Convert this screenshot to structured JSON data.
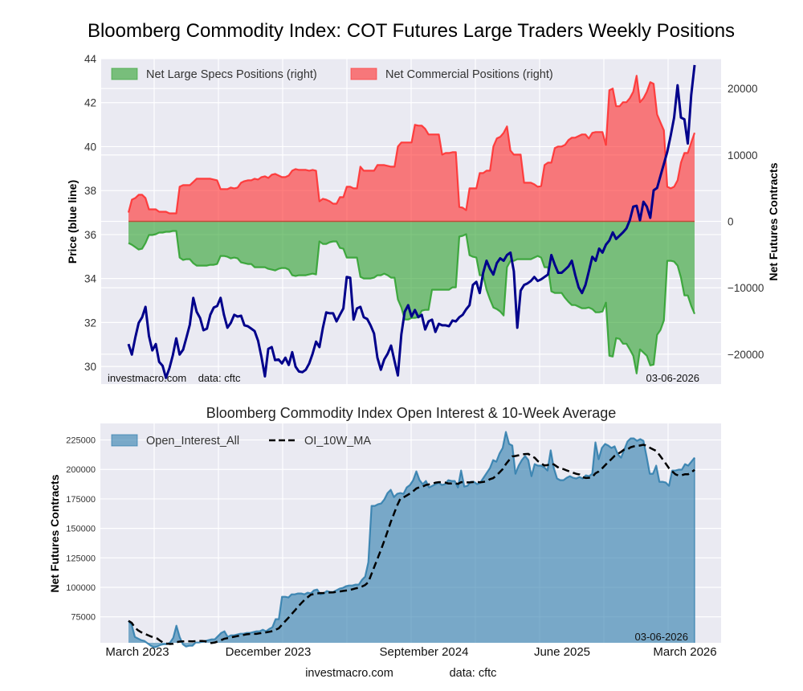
{
  "chart_data": [
    {
      "type": "area",
      "title": "Bloomberg Commodity Index: COT Futures Large Traders Weekly Positions",
      "xlabel": "",
      "ylabel": "Price (blue line)",
      "ylabel_right": "Net Futures Contracts",
      "ylim": [
        29.2,
        44
      ],
      "ylim_right": [
        -24500,
        24500
      ],
      "yticks": [
        30,
        32,
        34,
        36,
        38,
        40,
        42,
        44
      ],
      "yticks_right": [
        -20000,
        -10000,
        0,
        10000,
        20000
      ],
      "yticks_right_labels": [
        "−20000",
        "−10000",
        "0",
        "10000",
        "20000"
      ],
      "x_start": "March 2023",
      "x_end": "03-06-2026",
      "frequency": "weekly",
      "grid": true,
      "legend_position": "top-left",
      "annotation_left": "investmacro.com    data: cftc",
      "annotation_right": "03-06-2026",
      "series": [
        {
          "name": "Net Large Specs Positions (right)",
          "kind": "area",
          "axis": "right",
          "color": "#2ca02c",
          "values": [
            -3272,
            -3515,
            -3878,
            -4242,
            -4121,
            -3272,
            -2060,
            -2060,
            -1939,
            -1697,
            -1697,
            -1576,
            -1576,
            -1454,
            -1454,
            -5454,
            -5818,
            -5696,
            -5696,
            -6302,
            -6666,
            -6666,
            -6666,
            -6666,
            -6545,
            -6545,
            -6424,
            -5212,
            -5212,
            -5333,
            -5575,
            -5454,
            -5575,
            -6181,
            -6302,
            -6424,
            -6424,
            -6908,
            -6908,
            -6908,
            -6908,
            -7151,
            -7272,
            -7393,
            -7151,
            -7030,
            -7030,
            -7272,
            -8120,
            -8242,
            -8120,
            -8120,
            -8120,
            -8000,
            -7878,
            -8000,
            -3030,
            -3394,
            -3394,
            -3151,
            -3030,
            -3030,
            -4000,
            -4121,
            -5454,
            -5454,
            -5454,
            -5454,
            -8363,
            -8605,
            -8605,
            -8605,
            -8484,
            -8120,
            -8120,
            -7878,
            -8120,
            -8484,
            -8484,
            -11756,
            -12968,
            -14786,
            -14786,
            -14544,
            -14544,
            -14423,
            -13453,
            -13332,
            -13332,
            -10302,
            -10302,
            -10302,
            -10302,
            -10302,
            -10302,
            -9938,
            -9938,
            -2303,
            -2182,
            -1939,
            -5090,
            -5333,
            -5454,
            -8120,
            -8120,
            -10302,
            -11756,
            -12968,
            -13210,
            -13574,
            -14180,
            -6908,
            -5939,
            -5939,
            -5696,
            -5696,
            -5696,
            -5696,
            -5696,
            -5454,
            -5212,
            -5454,
            -6908,
            -6908,
            -10544,
            -10786,
            -10786,
            -10786,
            -11514,
            -12120,
            -12605,
            -12605,
            -12847,
            -13090,
            -13090,
            -12968,
            -13210,
            -13695,
            -13695,
            -13574,
            -12241,
            -20240,
            -20362,
            -17574,
            -17695,
            -18422,
            -18422,
            -19271,
            -20240,
            -22907,
            -19271,
            -19756,
            -20240,
            -21695,
            -21574,
            -17089,
            -16362,
            -14907,
            -5939,
            -5939,
            -6060,
            -6666,
            -8484,
            -11150,
            -11150,
            -12726,
            -13938
          ]
        },
        {
          "name": "Net Commercial Positions (right)",
          "kind": "area",
          "axis": "right",
          "color": "#ff2a2a",
          "values": [
            1333,
            3272,
            3515,
            4000,
            4000,
            3515,
            1818,
            1818,
            1818,
            1454,
            1454,
            1454,
            1212,
            1212,
            1212,
            5212,
            5454,
            5454,
            5454,
            5939,
            6424,
            6424,
            6424,
            6424,
            6424,
            6302,
            6181,
            4848,
            4848,
            4848,
            5090,
            4969,
            5090,
            5818,
            6060,
            6181,
            6181,
            6424,
            6302,
            6666,
            6787,
            6545,
            7030,
            7151,
            6908,
            6666,
            6666,
            6908,
            7636,
            7878,
            7757,
            7757,
            7757,
            7636,
            7757,
            7636,
            3030,
            3394,
            3272,
            3030,
            2666,
            2666,
            3636,
            3636,
            5212,
            5212,
            4969,
            4969,
            8242,
            7636,
            7636,
            7636,
            7636,
            8484,
            8484,
            8484,
            8363,
            8242,
            8242,
            11272,
            11878,
            11878,
            11878,
            11878,
            14544,
            14423,
            14423,
            13938,
            13090,
            13090,
            13090,
            13090,
            10060,
            10302,
            10302,
            10423,
            10423,
            2182,
            2060,
            1697,
            4969,
            4969,
            4969,
            7272,
            7272,
            7636,
            7636,
            11272,
            12484,
            12726,
            13332,
            14302,
            10666,
            10060,
            10060,
            10060,
            5818,
            5818,
            5818,
            5575,
            5212,
            5333,
            8484,
            8848,
            8848,
            11030,
            11272,
            11272,
            11514,
            12242,
            12605,
            12605,
            12848,
            13090,
            13090,
            12484,
            13332,
            13453,
            13453,
            13453,
            11514,
            19756,
            19998,
            17332,
            17332,
            17938,
            17938,
            18544,
            19513,
            21937,
            17938,
            18544,
            19513,
            20968,
            20725,
            16120,
            14908,
            13696,
            5212,
            4969,
            5212,
            6181,
            8848,
            10302,
            10302,
            11878,
            13332
          ]
        },
        {
          "name": "Price (blue line)",
          "kind": "line",
          "axis": "left",
          "color": "#00008b",
          "values": [
            31.02,
            30.54,
            31.32,
            31.98,
            32.24,
            32.71,
            31.39,
            30.73,
            31.02,
            30.21,
            30.03,
            29.48,
            29.92,
            30.51,
            31.28,
            30.54,
            30.76,
            31.32,
            31.9,
            33.12,
            32.49,
            32.2,
            31.65,
            31.72,
            32.35,
            32.68,
            32.75,
            33.12,
            32.35,
            31.76,
            31.98,
            32.35,
            32.27,
            32.31,
            31.87,
            31.83,
            31.72,
            31.61,
            31.17,
            30.43,
            29.55,
            30.8,
            30.88,
            30.29,
            30.32,
            30.14,
            30.4,
            30.07,
            30.65,
            29.99,
            29.77,
            29.74,
            29.85,
            30.14,
            30.58,
            31.13,
            30.88,
            31.76,
            32.46,
            32.42,
            32.42,
            32.05,
            32.35,
            32.64,
            34.07,
            34.04,
            32.13,
            32.64,
            32.71,
            32.24,
            32.16,
            31.87,
            31.5,
            30.4,
            29.85,
            30.32,
            30.58,
            30.95,
            30.25,
            29.59,
            31.46,
            32.49,
            32.79,
            32.27,
            32.57,
            32.24,
            32.35,
            31.68,
            32.05,
            32.13,
            31.57,
            31.94,
            31.87,
            31.87,
            31.83,
            32.09,
            32.05,
            32.24,
            32.35,
            32.6,
            32.79,
            33.71,
            33.85,
            33.34,
            34.26,
            34.81,
            34.44,
            34.18,
            34.7,
            34.92,
            34.81,
            35.07,
            35.18,
            34.33,
            31.76,
            33.45,
            33.71,
            33.78,
            33.89,
            34.07,
            33.89,
            33.96,
            34.07,
            34.18,
            35.07,
            34.63,
            34.26,
            34.26,
            34.4,
            34.55,
            34.81,
            34.15,
            33.6,
            33.34,
            33.71,
            34.33,
            34.99,
            34.81,
            35.36,
            35.18,
            35.54,
            35.73,
            36.1,
            35.8,
            35.95,
            36.1,
            36.28,
            36.65,
            37.27,
            37.31,
            36.65,
            37.49,
            37.27,
            36.76,
            38.01,
            38.12,
            38.67,
            39.22,
            39.77,
            40.51,
            41.32,
            42.79,
            41.32,
            41.24,
            40.14,
            42.35,
            43.71
          ]
        }
      ]
    },
    {
      "type": "area",
      "title": "Bloomberg Commodity Index Open Interest & 10-Week Average",
      "xlabel": "",
      "ylabel": "Net Futures Contracts",
      "ylim": [
        53000,
        239000
      ],
      "yticks": [
        75000,
        100000,
        125000,
        150000,
        175000,
        200000,
        225000
      ],
      "xticks": [
        "March 2023",
        "December 2023",
        "September 2024",
        "June 2025",
        "March 2026"
      ],
      "grid": true,
      "legend_position": "top-left",
      "annotation_right": "03-06-2026",
      "ma_window": 10,
      "series": [
        {
          "name": "Open_Interest_All",
          "kind": "area",
          "color": "#2b7bab",
          "values": [
            71600,
            68200,
            57950,
            56600,
            55250,
            54550,
            52500,
            50450,
            49100,
            49800,
            51150,
            51800,
            51800,
            53200,
            57300,
            67500,
            57950,
            51800,
            49800,
            50450,
            50450,
            53200,
            53200,
            53850,
            54550,
            55250,
            55900,
            55900,
            58650,
            61350,
            62750,
            57950,
            59350,
            59350,
            60000,
            60700,
            60700,
            61350,
            61350,
            62050,
            62750,
            62750,
            64100,
            62750,
            64800,
            66150,
            73000,
            73000,
            92050,
            92050,
            91400,
            94100,
            94100,
            94800,
            94800,
            94100,
            95500,
            94800,
            97500,
            98200,
            94100,
            94800,
            96850,
            96150,
            96150,
            97500,
            98900,
            99550,
            100950,
            101600,
            101600,
            102300,
            102300,
            106400,
            109100,
            121350,
            169100,
            169100,
            170450,
            171150,
            174550,
            180000,
            182750,
            176600,
            179300,
            180000,
            179300,
            184800,
            186800,
            190900,
            198400,
            190900,
            187500,
            190250,
            184800,
            186150,
            187500,
            188850,
            186800,
            187500,
            190900,
            190250,
            190250,
            184800,
            199100,
            185450,
            186150,
            189550,
            189550,
            187500,
            188850,
            192950,
            197050,
            201150,
            207950,
            206600,
            213400,
            218200,
            231800,
            221600,
            220250,
            196350,
            203200,
            207950,
            211350,
            207950,
            194300,
            204550,
            203200,
            203200,
            201800,
            199100,
            216150,
            201150,
            192300,
            190900,
            190900,
            192950,
            194300,
            192950,
            192300,
            193650,
            192300,
            195000,
            194300,
            196350,
            222950,
            208650,
            218200,
            221600,
            220250,
            218200,
            219550,
            212750,
            210000,
            216800,
            223650,
            226350,
            226350,
            224300,
            225700,
            224300,
            210700,
            196350,
            196350,
            203200,
            189550,
            189550,
            188850,
            186150,
            199100,
            199100,
            199800,
            199800,
            204550,
            203200,
            206600,
            210000
          ]
        },
        {
          "name": "OI_10W_MA",
          "kind": "dashed-line",
          "color": "#000000",
          "derived_from": "Open_Interest_All"
        }
      ]
    }
  ],
  "footer": {
    "site": "investmacro.com",
    "source": "data: cftc"
  }
}
